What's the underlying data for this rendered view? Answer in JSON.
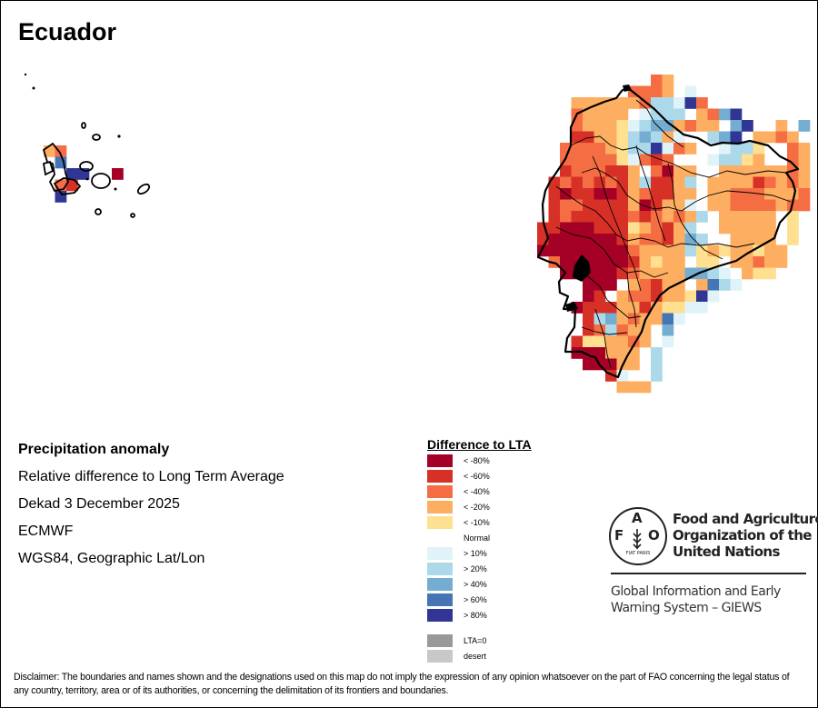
{
  "title": "Ecuador",
  "info_lines": [
    "Precipitation anomaly",
    "Relative difference to Long Term Average",
    "Dekad 3 December 2025",
    "ECMWF",
    "WGS84, Geographic Lat/Lon"
  ],
  "legend": {
    "title": "Difference to LTA",
    "items": [
      {
        "code": "A",
        "label": "< -80%",
        "color": "#a50026"
      },
      {
        "code": "B",
        "label": "< -60%",
        "color": "#d73027"
      },
      {
        "code": "C",
        "label": "< -40%",
        "color": "#f46d43"
      },
      {
        "code": "D",
        "label": "< -20%",
        "color": "#fdae61"
      },
      {
        "code": "E",
        "label": "< -10%",
        "color": "#fee090"
      },
      {
        "code": "N",
        "label": "Normal",
        "color": "#ffffff"
      },
      {
        "code": "F",
        "label": "> 10%",
        "color": "#e0f3f8"
      },
      {
        "code": "G",
        "label": "> 20%",
        "color": "#abd9e9"
      },
      {
        "code": "H",
        "label": "> 40%",
        "color": "#74add1"
      },
      {
        "code": "I",
        "label": "> 60%",
        "color": "#4575b4"
      },
      {
        "code": "J",
        "label": "> 80%",
        "color": "#313695"
      },
      {
        "code": "Z",
        "label": "LTA=0",
        "color": "#999999"
      },
      {
        "code": "S",
        "label": "desert",
        "color": "#c8c8c8"
      }
    ]
  },
  "map": {
    "mainland_grid": [
      "..........CD............",
      "........CCCDNF..........",
      "...DDDDDDCGGFJC.........",
      "...CDDDDNFGGGNDCHJ......",
      "...CDDDEFGHHDCDDNHJN.D.H",
      "...BBDDEGHGDFNNGHJNDDCD.",
      "..CCCCDEGGJFCDNNFGGENNCD",
      "..CCCCCEFCBCNNNFGGEDNNCD",
      "..BCCCBBDNCADDNNDDDDDDCD",
      ".BCBCBCBDGBBDGNDDDDBCDCD",
      ".BABBAABDCBBDDNDDCCCDDDC",
      ".BCCBBBBDABDDFNDDCCCCDCC",
      ".BCBBBBBCBCDCDGNDDDDDNE.",
      "BBAAABBBEDCBDGNNDDDDDNE.",
      "BAAAAAABDCCBDHGNNDDDDNE.",
      "AAAAAAAACDDDDGEDEDDEDD..",
      ".CAAAAAABDEDDNEENDDCDD..",
      "..AAAAABCDDDDHHGFNDEE...",
      "....AAANDCBDDNDIGF......",
      "...NABNDCCBDDEJF........",
      "...ABBBDDBDEEFF.........",
      "....BGHDCDDIF...........",
      "....BCGCDDNH............",
      "...BEEDDCDNF............",
      "...AAADDDNG.............",
      "....AAADDNG.............",
      "......BFNNG.............",
      ".......DDD.............."
    ],
    "galapagos_grid": [
      "DC.....",
      ".I.....",
      "..JJ..A",
      ".CB....",
      ".J....."
    ]
  },
  "logo": {
    "org_lines": [
      "Food and Agriculture",
      "Organization of the",
      "United Nations"
    ],
    "system_lines": [
      "Global Information and Early",
      "Warning System – GIEWS"
    ],
    "emblem_letters": [
      "F",
      "A",
      "O"
    ],
    "motto": "FIAT PANIS"
  },
  "disclaimer": "Disclaimer: The boundaries and names shown and the designations used on this map do not imply the expression of any opinion whatsoever on the part of FAO concerning the legal status of any country, territory, area or of its authorities, or concerning the delimitation of its frontiers and boundaries."
}
